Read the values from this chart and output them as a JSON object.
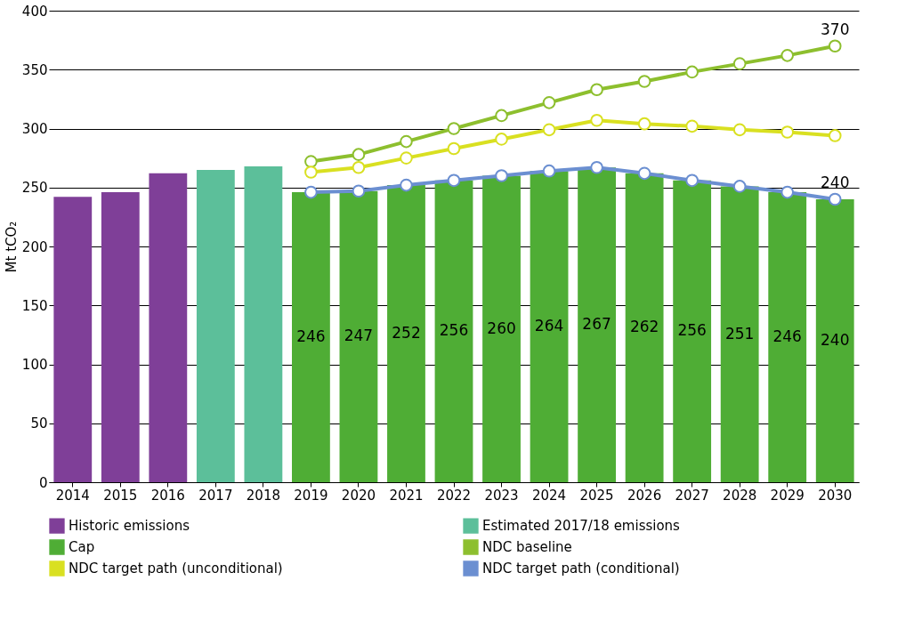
{
  "chart_data": {
    "type": "bar",
    "ylabel": "Mt tCO₂",
    "categories": [
      "2014",
      "2015",
      "2016",
      "2017",
      "2018",
      "2019",
      "2020",
      "2021",
      "2022",
      "2023",
      "2024",
      "2025",
      "2026",
      "2027",
      "2028",
      "2029",
      "2030"
    ],
    "ylim": [
      0,
      400
    ],
    "yticks": [
      0,
      50,
      100,
      150,
      200,
      250,
      300,
      350,
      400
    ],
    "grid": "y",
    "legend": "bottom",
    "marker": "circle",
    "series": [
      {
        "name": "Historic emissions",
        "color": "#7f3f98",
        "values": [
          242,
          246,
          262,
          null,
          null,
          null,
          null,
          null,
          null,
          null,
          null,
          null,
          null,
          null,
          null,
          null,
          null
        ]
      },
      {
        "name": "Estimated 2017/18 emissions",
        "color": "#5cbf9a",
        "values": [
          null,
          null,
          null,
          265,
          268,
          null,
          null,
          null,
          null,
          null,
          null,
          null,
          null,
          null,
          null,
          null,
          null
        ]
      },
      {
        "name": "Cap",
        "color": "#4fad35",
        "values": [
          null,
          null,
          null,
          null,
          null,
          246,
          247,
          252,
          256,
          260,
          264,
          267,
          262,
          256,
          251,
          246,
          240
        ],
        "value_labels": [
          null,
          null,
          null,
          null,
          null,
          "246",
          "247",
          "252",
          "256",
          "260",
          "264",
          "267",
          "262",
          "256",
          "251",
          "246",
          "240"
        ]
      },
      {
        "name": "NDC baseline",
        "type": "line",
        "color": "#8dbf2e",
        "values": [
          null,
          null,
          null,
          null,
          null,
          272,
          278,
          289,
          300,
          311,
          322,
          333,
          340,
          348,
          355,
          362,
          370
        ],
        "value_labels": [
          null,
          null,
          null,
          null,
          null,
          null,
          null,
          null,
          null,
          null,
          null,
          null,
          null,
          null,
          null,
          null,
          "370"
        ]
      },
      {
        "name": "NDC target path (unconditional)",
        "type": "line",
        "color": "#d9e021",
        "values": [
          null,
          null,
          null,
          null,
          null,
          263,
          267,
          275,
          283,
          291,
          299,
          307,
          304,
          302,
          299,
          297,
          294
        ]
      },
      {
        "name": "NDC target path (conditional)",
        "type": "line",
        "color": "#6b8fd1",
        "values": [
          null,
          null,
          null,
          null,
          null,
          246,
          247,
          252,
          256,
          260,
          264,
          267,
          262,
          256,
          251,
          246,
          240
        ],
        "value_labels": [
          null,
          null,
          null,
          null,
          null,
          null,
          null,
          null,
          null,
          null,
          null,
          null,
          null,
          null,
          null,
          null,
          "240"
        ]
      }
    ]
  }
}
